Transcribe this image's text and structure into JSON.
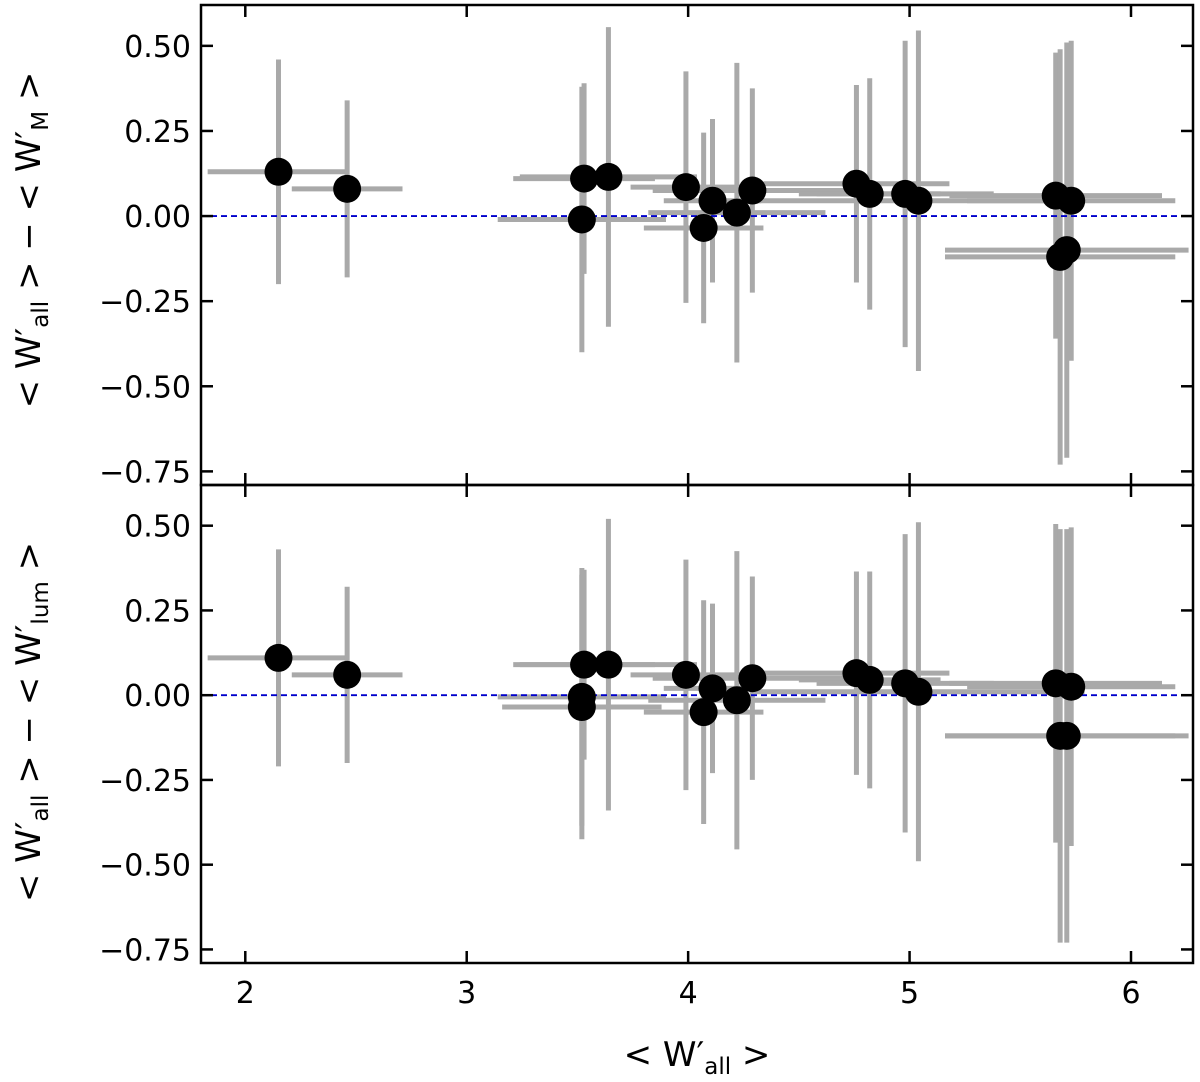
{
  "chart_data": [
    {
      "type": "scatter",
      "panel": "top",
      "xlabel": {
        "pre": "< W′",
        "sub": "all",
        "post": " >"
      },
      "ylabel": {
        "a_pre": "< W′",
        "a_sub": "all",
        "a_post": " >",
        "minus": " − ",
        "b_pre": "< W′",
        "b_sub": "M",
        "b_post": " >"
      },
      "xlim": [
        1.8,
        6.28
      ],
      "ylim": [
        -0.79,
        0.62
      ],
      "yticks": [
        0.5,
        0.25,
        0.0,
        -0.25,
        -0.5,
        -0.75
      ],
      "ytick_labels": [
        "0.50",
        "0.25",
        "0.00",
        "−0.25",
        "−0.50",
        "−0.75"
      ],
      "reference_line": 0.0,
      "colors": {
        "marker": "#000000",
        "errorbar": "#a9a9a9",
        "reference": "#0000cc"
      },
      "points": [
        {
          "x": 2.15,
          "y": 0.13,
          "xerr": 0.32,
          "yerr": 0.33
        },
        {
          "x": 2.46,
          "y": 0.08,
          "xerr": 0.25,
          "yerr": 0.26
        },
        {
          "x": 3.52,
          "y": -0.01,
          "xerr": 0.38,
          "yerr": 0.39
        },
        {
          "x": 3.53,
          "y": 0.11,
          "xerr": 0.32,
          "yerr": 0.28
        },
        {
          "x": 3.64,
          "y": 0.115,
          "xerr": 0.4,
          "yerr": 0.44
        },
        {
          "x": 3.99,
          "y": 0.085,
          "xerr": 0.25,
          "yerr": 0.34
        },
        {
          "x": 4.07,
          "y": -0.035,
          "xerr": 0.27,
          "yerr": 0.28
        },
        {
          "x": 4.11,
          "y": 0.045,
          "xerr": 0.22,
          "yerr": 0.24
        },
        {
          "x": 4.22,
          "y": 0.01,
          "xerr": 0.4,
          "yerr": 0.44
        },
        {
          "x": 4.29,
          "y": 0.075,
          "xerr": 0.45,
          "yerr": 0.3
        },
        {
          "x": 4.76,
          "y": 0.095,
          "xerr": 0.42,
          "yerr": 0.29
        },
        {
          "x": 4.82,
          "y": 0.065,
          "xerr": 0.32,
          "yerr": 0.34
        },
        {
          "x": 4.98,
          "y": 0.065,
          "xerr": 0.4,
          "yerr": 0.45
        },
        {
          "x": 5.04,
          "y": 0.045,
          "xerr": 0.75,
          "yerr": 0.5
        },
        {
          "x": 5.66,
          "y": 0.06,
          "xerr": 0.48,
          "yerr": 0.42
        },
        {
          "x": 5.68,
          "y": -0.12,
          "xerr": 0.52,
          "yerr": 0.61
        },
        {
          "x": 5.71,
          "y": -0.1,
          "xerr": 0.55,
          "yerr": 0.61
        },
        {
          "x": 5.73,
          "y": 0.045,
          "xerr": 0.47,
          "yerr": 0.47
        }
      ]
    },
    {
      "type": "scatter",
      "panel": "bottom",
      "xlabel": {
        "pre": "< W′",
        "sub": "all",
        "post": " >"
      },
      "ylabel": {
        "a_pre": "< W′",
        "a_sub": "all",
        "a_post": " >",
        "minus": " − ",
        "b_pre": "< W′",
        "b_sub": "lum",
        "b_post": " >"
      },
      "xlim": [
        1.8,
        6.28
      ],
      "ylim": [
        -0.79,
        0.62
      ],
      "yticks": [
        0.5,
        0.25,
        0.0,
        -0.25,
        -0.5,
        -0.75
      ],
      "ytick_labels": [
        "0.50",
        "0.25",
        "0.00",
        "−0.25",
        "−0.50",
        "−0.75"
      ],
      "xticks": [
        2,
        3,
        4,
        5,
        6
      ],
      "xtick_labels": [
        "2",
        "3",
        "4",
        "5",
        "6"
      ],
      "reference_line": 0.0,
      "colors": {
        "marker": "#000000",
        "errorbar": "#a9a9a9",
        "reference": "#0000cc"
      },
      "points": [
        {
          "x": 2.15,
          "y": 0.11,
          "xerr": 0.32,
          "yerr": 0.32
        },
        {
          "x": 2.46,
          "y": 0.06,
          "xerr": 0.25,
          "yerr": 0.26
        },
        {
          "x": 3.52,
          "y": -0.005,
          "xerr": 0.38,
          "yerr": 0.38
        },
        {
          "x": 3.52,
          "y": -0.035,
          "xerr": 0.36,
          "yerr": 0.39
        },
        {
          "x": 3.53,
          "y": 0.09,
          "xerr": 0.32,
          "yerr": 0.28
        },
        {
          "x": 3.64,
          "y": 0.09,
          "xerr": 0.4,
          "yerr": 0.43
        },
        {
          "x": 3.99,
          "y": 0.06,
          "xerr": 0.25,
          "yerr": 0.34
        },
        {
          "x": 4.07,
          "y": -0.05,
          "xerr": 0.27,
          "yerr": 0.33
        },
        {
          "x": 4.11,
          "y": 0.02,
          "xerr": 0.22,
          "yerr": 0.25
        },
        {
          "x": 4.22,
          "y": -0.015,
          "xerr": 0.4,
          "yerr": 0.44
        },
        {
          "x": 4.29,
          "y": 0.05,
          "xerr": 0.45,
          "yerr": 0.3
        },
        {
          "x": 4.76,
          "y": 0.065,
          "xerr": 0.42,
          "yerr": 0.3
        },
        {
          "x": 4.82,
          "y": 0.045,
          "xerr": 0.32,
          "yerr": 0.32
        },
        {
          "x": 4.98,
          "y": 0.035,
          "xerr": 0.4,
          "yerr": 0.44
        },
        {
          "x": 5.04,
          "y": 0.01,
          "xerr": 0.75,
          "yerr": 0.5
        },
        {
          "x": 5.66,
          "y": 0.035,
          "xerr": 0.48,
          "yerr": 0.47
        },
        {
          "x": 5.68,
          "y": -0.12,
          "xerr": 0.52,
          "yerr": 0.61
        },
        {
          "x": 5.71,
          "y": -0.12,
          "xerr": 0.55,
          "yerr": 0.61
        },
        {
          "x": 5.73,
          "y": 0.025,
          "xerr": 0.47,
          "yerr": 0.47
        }
      ]
    }
  ]
}
